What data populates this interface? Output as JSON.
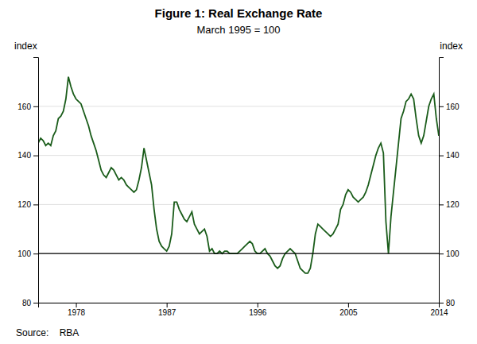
{
  "chart_data": {
    "type": "line",
    "title": "Figure 1: Real Exchange Rate",
    "subtitle": "March 1995 = 100",
    "ylabel": "index",
    "y2label": "index",
    "source": "Source:    RBA",
    "color": "#1a5c1a",
    "grid": true,
    "reference_line": 100,
    "xlim": [
      1974.25,
      2014.0
    ],
    "xticks": [
      1978,
      1987,
      1996,
      2005,
      2014
    ],
    "ylim": [
      80,
      180
    ],
    "yticks": [
      80,
      100,
      120,
      140,
      160
    ],
    "y2lim": [
      80,
      180
    ],
    "y2ticks": [
      80,
      100,
      120,
      140,
      160
    ],
    "x": [
      1974.25,
      1974.5,
      1974.75,
      1975.0,
      1975.25,
      1975.5,
      1975.75,
      1976.0,
      1976.25,
      1976.5,
      1976.75,
      1977.0,
      1977.25,
      1977.5,
      1977.75,
      1978.0,
      1978.25,
      1978.5,
      1978.75,
      1979.0,
      1979.25,
      1979.5,
      1979.75,
      1980.0,
      1980.25,
      1980.5,
      1980.75,
      1981.0,
      1981.25,
      1981.5,
      1981.75,
      1982.0,
      1982.25,
      1982.5,
      1982.75,
      1983.0,
      1983.25,
      1983.5,
      1983.75,
      1984.0,
      1984.25,
      1984.5,
      1984.75,
      1985.0,
      1985.25,
      1985.5,
      1985.75,
      1986.0,
      1986.25,
      1986.5,
      1986.75,
      1987.0,
      1987.25,
      1987.5,
      1987.75,
      1988.0,
      1988.25,
      1988.5,
      1988.75,
      1989.0,
      1989.25,
      1989.5,
      1989.75,
      1990.0,
      1990.25,
      1990.5,
      1990.75,
      1991.0,
      1991.25,
      1991.5,
      1991.75,
      1992.0,
      1992.25,
      1992.5,
      1992.75,
      1993.0,
      1993.25,
      1993.5,
      1993.75,
      1994.0,
      1994.25,
      1994.5,
      1994.75,
      1995.0,
      1995.25,
      1995.5,
      1995.75,
      1996.0,
      1996.25,
      1996.5,
      1996.75,
      1997.0,
      1997.25,
      1997.5,
      1997.75,
      1998.0,
      1998.25,
      1998.5,
      1998.75,
      1999.0,
      1999.25,
      1999.5,
      1999.75,
      2000.0,
      2000.25,
      2000.5,
      2000.75,
      2001.0,
      2001.25,
      2001.5,
      2001.75,
      2002.0,
      2002.25,
      2002.5,
      2002.75,
      2003.0,
      2003.25,
      2003.5,
      2003.75,
      2004.0,
      2004.25,
      2004.5,
      2004.75,
      2005.0,
      2005.25,
      2005.5,
      2005.75,
      2006.0,
      2006.25,
      2006.5,
      2006.75,
      2007.0,
      2007.25,
      2007.5,
      2007.75,
      2008.0,
      2008.25,
      2008.5,
      2008.75,
      2009.0,
      2009.25,
      2009.5,
      2009.75,
      2010.0,
      2010.25,
      2010.5,
      2010.75,
      2011.0,
      2011.25,
      2011.5,
      2011.75,
      2012.0,
      2012.25,
      2012.5,
      2012.75,
      2013.0,
      2013.25,
      2013.5,
      2013.75,
      2014.0
    ],
    "values": [
      145,
      147,
      146,
      144,
      145,
      144,
      148,
      150,
      155,
      156,
      158,
      163,
      172,
      168,
      165,
      163,
      162,
      161,
      158,
      155,
      152,
      148,
      145,
      142,
      138,
      134,
      132,
      131,
      133,
      135,
      134,
      132,
      130,
      131,
      130,
      128,
      127,
      126,
      125,
      126,
      130,
      135,
      143,
      138,
      133,
      128,
      118,
      110,
      105,
      103,
      102,
      101,
      103,
      108,
      121,
      121,
      118,
      116,
      114,
      113,
      115,
      117,
      112,
      110,
      108,
      109,
      110,
      107,
      101,
      102,
      100,
      100,
      101,
      100,
      101,
      101,
      100,
      100,
      100,
      100,
      101,
      102,
      103,
      104,
      105,
      104,
      101,
      100,
      100,
      101,
      102,
      100,
      99,
      97,
      95,
      94,
      95,
      98,
      100,
      101,
      102,
      101,
      100,
      97,
      94,
      93,
      92,
      92,
      94,
      100,
      108,
      112,
      111,
      110,
      109,
      108,
      107,
      108,
      110,
      112,
      118,
      120,
      124,
      126,
      125,
      123,
      122,
      121,
      122,
      123,
      125,
      128,
      132,
      136,
      140,
      143,
      145,
      141,
      113,
      100,
      115,
      125,
      135,
      145,
      155,
      158,
      162,
      163,
      165,
      163,
      155,
      148,
      145,
      148,
      154,
      160,
      163,
      165,
      155,
      148
    ]
  }
}
